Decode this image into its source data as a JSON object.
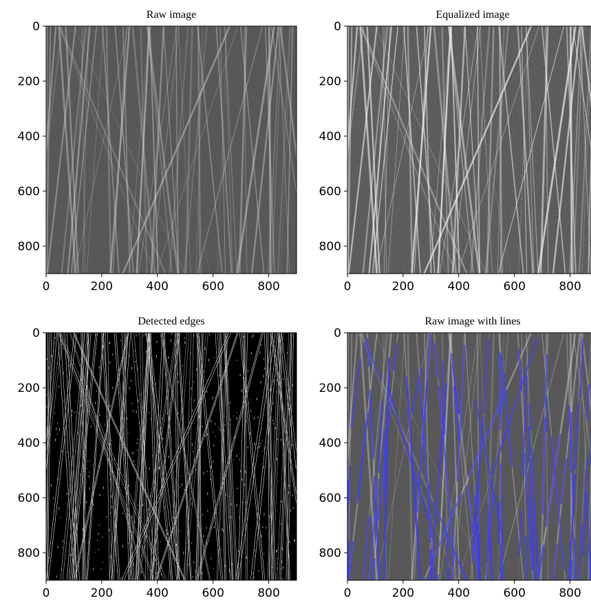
{
  "chart_data": [
    {
      "type": "image",
      "title": "Raw image",
      "xlim": [
        0,
        900
      ],
      "ylim": [
        900,
        0
      ],
      "xticks": [
        0,
        200,
        400,
        600,
        800
      ],
      "yticks": [
        0,
        200,
        400,
        600,
        800
      ]
    },
    {
      "type": "image",
      "title": "Equalized image",
      "xlim": [
        0,
        900
      ],
      "ylim": [
        900,
        0
      ],
      "xticks": [
        0,
        200,
        400,
        600,
        800
      ],
      "yticks": [
        0,
        200,
        400,
        600,
        800
      ]
    },
    {
      "type": "image",
      "title": "Detected edges",
      "xlim": [
        0,
        900
      ],
      "ylim": [
        900,
        0
      ],
      "xticks": [
        0,
        200,
        400,
        600,
        800
      ],
      "yticks": [
        0,
        200,
        400,
        600,
        800
      ]
    },
    {
      "type": "image",
      "title": "Raw image with lines",
      "xlim": [
        0,
        900
      ],
      "ylim": [
        900,
        0
      ],
      "xticks": [
        0,
        200,
        400,
        600,
        800
      ],
      "yticks": [
        0,
        200,
        400,
        600,
        800
      ]
    }
  ]
}
